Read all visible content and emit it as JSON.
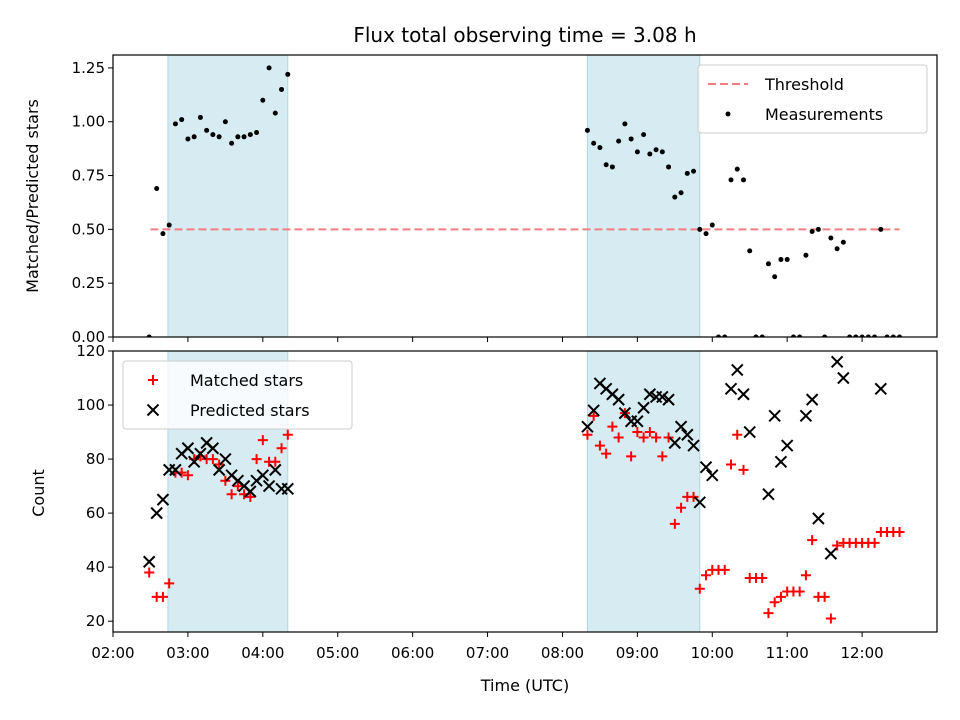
{
  "chart_data": [
    {
      "type": "scatter",
      "title": "Flux total observing time = 3.08 h",
      "xlabel": "",
      "ylabel": "Matched/Predicted stars",
      "xlim": [
        "02:00",
        "13:00"
      ],
      "ylim": [
        0,
        1.31
      ],
      "yticks": [
        "0.00",
        "0.25",
        "0.50",
        "0.75",
        "1.00",
        "1.25"
      ],
      "shaded_spans": [
        [
          "02:44",
          "04:20"
        ],
        [
          "08:20",
          "09:50"
        ]
      ],
      "legend": {
        "position": "top-right",
        "entries": [
          "Threshold",
          "Measurements"
        ]
      },
      "threshold": {
        "name": "Threshold",
        "value": 0.5,
        "x": [
          "02:30",
          "12:30"
        ],
        "color": "#f08080"
      },
      "series": [
        {
          "name": "Measurements",
          "color": "#000000",
          "x": [
            "02:29",
            "02:35",
            "02:40",
            "02:45",
            "02:50",
            "02:55",
            "03:00",
            "03:05",
            "03:10",
            "03:15",
            "03:20",
            "03:25",
            "03:30",
            "03:35",
            "03:40",
            "03:45",
            "03:50",
            "03:55",
            "04:00",
            "04:05",
            "04:10",
            "04:15",
            "04:20",
            "08:20",
            "08:25",
            "08:30",
            "08:35",
            "08:40",
            "08:45",
            "08:50",
            "08:55",
            "09:00",
            "09:05",
            "09:10",
            "09:15",
            "09:20",
            "09:25",
            "09:30",
            "09:35",
            "09:40",
            "09:45",
            "09:50",
            "09:55",
            "10:00",
            "10:05",
            "10:10",
            "10:15",
            "10:20",
            "10:25",
            "10:30",
            "10:35",
            "10:40",
            "10:45",
            "10:50",
            "10:55",
            "11:00",
            "11:05",
            "11:10",
            "11:15",
            "11:20",
            "11:25",
            "11:30",
            "11:35",
            "11:40",
            "11:45",
            "11:50",
            "11:55",
            "12:00",
            "12:05",
            "12:10",
            "12:15",
            "12:20",
            "12:25",
            "12:30"
          ],
          "y": [
            0.0,
            0.69,
            0.48,
            0.52,
            0.99,
            1.01,
            0.92,
            0.93,
            1.02,
            0.96,
            0.94,
            0.93,
            1.0,
            0.9,
            0.93,
            0.93,
            0.94,
            0.95,
            1.1,
            1.25,
            1.04,
            1.15,
            1.22,
            0.96,
            0.9,
            0.88,
            0.8,
            0.79,
            0.91,
            0.99,
            0.92,
            0.86,
            0.94,
            0.85,
            0.87,
            0.86,
            0.79,
            0.65,
            0.67,
            0.76,
            0.77,
            0.5,
            0.48,
            0.52,
            0.0,
            0.0,
            0.73,
            0.78,
            0.73,
            0.4,
            0.0,
            0.0,
            0.34,
            0.28,
            0.36,
            0.36,
            0.0,
            0.0,
            0.38,
            0.49,
            0.5,
            0.0,
            0.46,
            0.41,
            0.44,
            0.0,
            0.0,
            0.0,
            0.0,
            0.0,
            0.5,
            0.0,
            0.0,
            0.0
          ]
        }
      ]
    },
    {
      "type": "scatter",
      "title": "",
      "xlabel": "Time (UTC)",
      "ylabel": "Count",
      "xlim": [
        "02:00",
        "13:00"
      ],
      "ylim": [
        16,
        120
      ],
      "xticks": [
        "02:00",
        "03:00",
        "04:00",
        "05:00",
        "06:00",
        "07:00",
        "08:00",
        "09:00",
        "10:00",
        "11:00",
        "12:00"
      ],
      "yticks": [
        "20",
        "40",
        "60",
        "80",
        "100",
        "120"
      ],
      "shaded_spans": [
        [
          "02:44",
          "04:20"
        ],
        [
          "08:20",
          "09:50"
        ]
      ],
      "legend": {
        "position": "top-left",
        "entries": [
          "Matched stars",
          "Predicted stars"
        ]
      },
      "series": [
        {
          "name": "Matched stars",
          "marker": "+",
          "color": "#ff0000",
          "x": [
            "02:29",
            "02:35",
            "02:40",
            "02:45",
            "02:50",
            "02:55",
            "03:00",
            "03:05",
            "03:10",
            "03:15",
            "03:20",
            "03:25",
            "03:30",
            "03:35",
            "03:40",
            "03:45",
            "03:50",
            "03:55",
            "04:00",
            "04:05",
            "04:10",
            "04:15",
            "04:20",
            "08:20",
            "08:25",
            "08:30",
            "08:35",
            "08:40",
            "08:45",
            "08:50",
            "08:55",
            "09:00",
            "09:05",
            "09:10",
            "09:15",
            "09:20",
            "09:25",
            "09:30",
            "09:35",
            "09:40",
            "09:45",
            "09:50",
            "09:55",
            "10:00",
            "10:05",
            "10:10",
            "10:15",
            "10:20",
            "10:25",
            "10:30",
            "10:35",
            "10:40",
            "10:45",
            "10:50",
            "10:55",
            "11:00",
            "11:05",
            "11:10",
            "11:15",
            "11:20",
            "11:25",
            "11:30",
            "11:35",
            "11:40",
            "11:45",
            "11:50",
            "11:55",
            "12:00",
            "12:05",
            "12:10",
            "12:15",
            "12:20",
            "12:25",
            "12:30"
          ],
          "y": [
            38,
            29,
            29,
            34,
            75,
            75,
            74,
            80,
            81,
            80,
            80,
            78,
            72,
            67,
            70,
            67,
            66,
            80,
            87,
            79,
            79,
            84,
            89,
            89,
            96,
            85,
            82,
            92,
            88,
            97,
            81,
            90,
            88,
            90,
            88,
            81,
            88,
            56,
            62,
            66,
            66,
            32,
            37,
            39,
            39,
            39,
            78,
            89,
            76,
            36,
            36,
            36,
            23,
            27,
            29,
            31,
            31,
            31,
            37,
            50,
            29,
            29,
            21,
            48,
            49,
            49,
            49,
            49,
            49,
            49,
            53,
            53,
            53,
            53
          ]
        },
        {
          "name": "Predicted stars",
          "marker": "x",
          "color": "#000000",
          "x": [
            "02:29",
            "02:35",
            "02:40",
            "02:45",
            "02:50",
            "02:55",
            "03:00",
            "03:05",
            "03:10",
            "03:15",
            "03:20",
            "03:25",
            "03:30",
            "03:35",
            "03:40",
            "03:45",
            "03:50",
            "03:55",
            "04:00",
            "04:05",
            "04:10",
            "04:15",
            "04:20",
            "08:20",
            "08:25",
            "08:30",
            "08:35",
            "08:40",
            "08:45",
            "08:50",
            "08:55",
            "09:00",
            "09:05",
            "09:10",
            "09:15",
            "09:20",
            "09:25",
            "09:30",
            "09:35",
            "09:40",
            "09:45",
            "09:50",
            "09:55",
            "10:00",
            "10:15",
            "10:20",
            "10:25",
            "10:30",
            "10:45",
            "10:50",
            "10:55",
            "11:00",
            "11:15",
            "11:20",
            "11:25",
            "11:35",
            "11:40",
            "11:45",
            "12:15"
          ],
          "y": [
            42,
            60,
            65,
            76,
            76,
            82,
            84,
            79,
            82,
            86,
            84,
            76,
            80,
            74,
            72,
            70,
            68,
            72,
            74,
            70,
            76,
            69,
            69,
            92,
            98,
            108,
            106,
            104,
            102,
            97,
            94,
            94,
            99,
            104,
            103,
            103,
            102,
            86,
            92,
            89,
            85,
            64,
            77,
            74,
            106,
            113,
            104,
            90,
            67,
            96,
            79,
            85,
            96,
            102,
            58,
            45,
            116,
            110,
            106
          ]
        }
      ]
    }
  ]
}
